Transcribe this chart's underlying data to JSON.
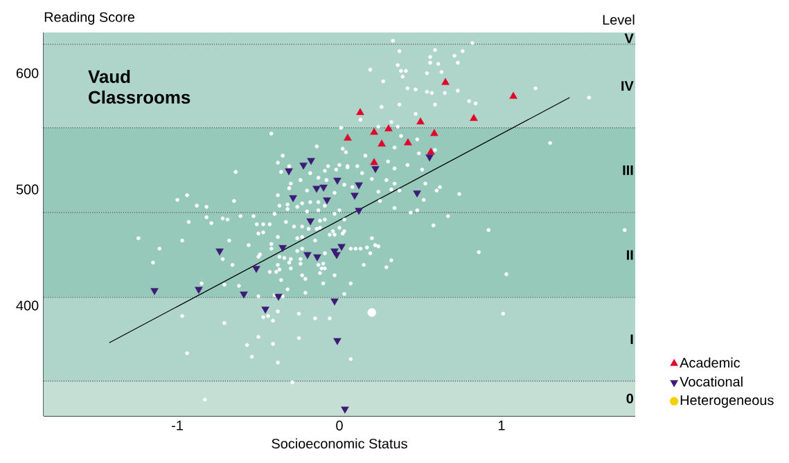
{
  "chart_data": {
    "type": "scatter",
    "title": "Vaud Classrooms",
    "xlabel": "Socioeconomic Status",
    "ylabel": "Reading Score",
    "y2label": "Level",
    "xlim": [
      -1.825,
      1.825
    ],
    "ylim": [
      305,
      635
    ],
    "xticks": [
      -1,
      0,
      1
    ],
    "yticks": [
      400,
      500,
      600
    ],
    "legend": "bottom right",
    "bands": [
      {
        "axis": "y",
        "from": 305,
        "to": 335,
        "label": "0",
        "color": "#c5dfd5"
      },
      {
        "axis": "y",
        "from": 335,
        "to": 407,
        "label": "I",
        "color": "#afd5ca"
      },
      {
        "axis": "y",
        "from": 407,
        "to": 480,
        "label": "II",
        "color": "#96c9b9"
      },
      {
        "axis": "y",
        "from": 480,
        "to": 553,
        "label": "III",
        "color": "#96c9b9"
      },
      {
        "axis": "y",
        "from": 553,
        "to": 625,
        "label": "IV",
        "color": "#afd5ca"
      },
      {
        "axis": "y",
        "from": 625,
        "to": 635,
        "label": "V",
        "color": "#afd5ca"
      }
    ],
    "ref_lines": [
      {
        "axis": "y",
        "value": 335,
        "line_style": "dotted",
        "color": "#444444"
      },
      {
        "axis": "y",
        "value": 407,
        "line_style": "dotted",
        "color": "#444444"
      },
      {
        "axis": "y",
        "value": 480,
        "line_style": "dotted",
        "color": "#444444"
      },
      {
        "axis": "y",
        "value": 553,
        "line_style": "dotted",
        "color": "#444444"
      },
      {
        "axis": "y",
        "value": 625,
        "line_style": "dotted",
        "color": "#444444"
      }
    ],
    "series": [
      {
        "color": "#ffffff",
        "marker": "circle",
        "x": [
          0.37,
          0.59,
          0.76,
          0.71,
          0.56,
          0.56,
          0.61,
          0.73,
          0.36,
          0.19,
          0.38,
          0.41,
          0.54,
          0.63,
          0.39,
          0.27,
          0.42,
          0.47,
          0.54,
          0.57,
          0.65,
          0.73,
          1.21,
          0.37,
          0.59,
          0.8,
          0.84,
          1.54,
          0.26,
          0.47,
          0.13,
          0.32,
          0.36,
          0.24,
          0.38,
          0.48,
          1.3,
          0.34,
          0.59,
          0.49,
          0.16,
          0.3,
          0.42,
          0.11,
          0.05,
          0.34,
          0.51,
          0.14,
          0.2,
          0.29,
          0.53,
          0.34,
          0.62,
          0.08,
          0.32,
          0.37,
          0.24,
          0.6,
          0.74,
          0.52,
          0.25,
          0.34,
          0.44,
          0.48,
          0.67,
          0.58,
          0.92,
          0.82,
          0.33,
          0.07,
          0.1,
          0.13,
          0.17,
          0.2,
          0.22,
          0.24,
          0.19,
          0.15,
          0.32,
          0.29,
          0.07,
          0.86,
          1.03,
          1.01,
          0.07,
          1.76,
          0.01,
          -0.42,
          -0.14,
          0.04,
          0.02,
          -0.35,
          -0.38,
          -0.31,
          -0.07,
          0.0,
          0.05,
          -0.02,
          -0.09,
          -0.36,
          -0.18,
          -0.64,
          -0.13,
          -0.08,
          -0.24,
          -0.3,
          0.03,
          -0.31,
          -0.2,
          -0.03,
          -0.38,
          -0.94,
          -1.0,
          -0.88,
          -0.82,
          -0.65,
          -0.37,
          -0.32,
          -0.23,
          -0.18,
          -0.13,
          -0.09,
          -0.26,
          -0.13,
          -0.32,
          0.0,
          -0.2,
          -0.53,
          -0.61,
          -0.4,
          -0.03,
          -0.82,
          -0.72,
          -0.69,
          -0.93,
          -0.79,
          -0.51,
          -0.47,
          -0.43,
          -0.33,
          -0.28,
          -0.23,
          -0.12,
          -0.09,
          0.03,
          0.0,
          -1.24,
          -0.97,
          -1.11,
          -1.15,
          -0.68,
          -0.56,
          -0.72,
          -0.66,
          -0.85,
          -0.71,
          -0.62,
          -0.47,
          -0.5,
          -0.38,
          -0.42,
          -0.42,
          -0.49,
          -0.5,
          -0.37,
          -0.34,
          -0.3,
          -0.31,
          -0.38,
          -0.3,
          -0.24,
          -0.24,
          -0.43,
          -0.39,
          -0.37,
          -0.36,
          -0.32,
          -0.23,
          -0.21,
          -0.21,
          -0.26,
          -0.23,
          -0.26,
          -0.23,
          -0.19,
          -0.15,
          -0.14,
          -0.12,
          -0.06,
          -0.04,
          -0.03,
          0.03,
          0.02,
          -0.13,
          -0.1,
          -0.11,
          -0.09,
          -0.12,
          -0.03,
          -0.1,
          -0.09,
          0.03,
          -0.5,
          -0.4,
          -0.35,
          -0.97,
          -0.71,
          -0.47,
          -0.44,
          -0.41,
          -0.38,
          -0.25,
          -0.15,
          -0.06,
          -0.5,
          -0.57,
          -0.54,
          -0.41,
          -0.25,
          -0.38,
          -0.94,
          -0.29,
          -0.83
        ],
        "values": [
          619,
          620,
          619,
          615,
          614,
          609,
          608,
          609,
          607,
          603,
          602,
          602,
          600,
          601,
          597,
          593,
          587,
          586,
          584,
          583,
          583,
          585,
          587,
          573,
          573,
          576,
          574,
          579,
          571,
          565,
          560,
          558,
          554,
          554,
          546,
          543,
          540,
          536,
          534,
          531,
          529,
          524,
          521,
          520,
          520,
          518,
          517,
          514,
          509,
          508,
          505,
          505,
          502,
          502,
          500,
          499,
          498,
          499,
          496,
          491,
          490,
          484,
          480,
          482,
          477,
          469,
          465,
          626,
          628,
          449,
          449,
          449,
          450,
          458,
          452,
          451,
          445,
          435,
          439,
          433,
          419,
          446,
          427,
          393,
          354,
          465,
          553,
          548,
          537,
          532,
          535,
          529,
          523,
          520,
          520,
          521,
          519,
          517,
          516,
          515,
          514,
          515,
          510,
          508,
          508,
          505,
          504,
          501,
          499,
          497,
          495,
          495,
          491,
          486,
          485,
          490,
          486,
          487,
          488,
          489,
          489,
          486,
          485,
          482,
          483,
          482,
          481,
          477,
          477,
          479,
          479,
          476,
          475,
          474,
          472,
          471,
          470,
          470,
          470,
          472,
          468,
          468,
          473,
          474,
          474,
          467,
          458,
          456,
          449,
          437,
          456,
          452,
          440,
          435,
          419,
          418,
          417,
          463,
          462,
          459,
          453,
          449,
          444,
          442,
          442,
          441,
          440,
          437,
          435,
          432,
          436,
          440,
          429,
          429,
          431,
          422,
          414,
          426,
          423,
          411,
          447,
          449,
          458,
          459,
          466,
          456,
          466,
          467,
          461,
          464,
          461,
          464,
          462,
          435,
          436,
          432,
          432,
          428,
          426,
          419,
          445,
          410,
          408,
          409,
          408,
          391,
          385,
          390,
          391,
          387,
          395,
          393,
          389,
          389,
          373,
          366,
          356,
          367,
          372,
          351,
          359,
          334,
          319
        ]
      },
      {
        "type": "bubble",
        "color": "#ffffff",
        "x": [
          0.2
        ],
        "values": [
          394
        ],
        "sizes": [
          1
        ]
      },
      {
        "type": "line",
        "color": "#000000",
        "line_style": "solid",
        "marker": "none",
        "x": [
          -1.42,
          1.42
        ],
        "values": [
          368,
          579
        ]
      },
      {
        "name": "Academic",
        "color": "#e3002b",
        "marker": "triangle",
        "x": [
          0.654,
          1.073,
          0.128,
          0.829,
          0.5,
          0.214,
          0.303,
          0.051,
          0.585,
          0.261,
          0.423,
          0.564,
          0.214
        ],
        "values": [
          592,
          580,
          566,
          561,
          558,
          549,
          552,
          544,
          548,
          539,
          540,
          532,
          523
        ]
      },
      {
        "name": "Vocational",
        "color": "#3d1a78",
        "marker": "triangle-down",
        "x": [
          0.222,
          0.556,
          0.12,
          0.094,
          0.479,
          0.12,
          -0.175,
          -0.222,
          -0.312,
          -0.013,
          -0.141,
          -0.098,
          -0.286,
          -0.077,
          -0.179,
          -0.35,
          -0.739,
          0.013,
          -0.03,
          -0.017,
          -0.197,
          -0.137,
          -0.513,
          -1.141,
          -0.868,
          -0.59,
          -0.376,
          -0.457,
          -0.03,
          -0.013,
          0.034
        ],
        "values": [
          518,
          528,
          504,
          495,
          497,
          482,
          525,
          521,
          516,
          508,
          501,
          502,
          493,
          491,
          473,
          450,
          447,
          451,
          447,
          444,
          444,
          442,
          432,
          413,
          414,
          410,
          408,
          397,
          404,
          370,
          311
        ]
      },
      {
        "name": "Heterogeneous",
        "color": "#f5d000",
        "marker": "circle"
      }
    ]
  }
}
